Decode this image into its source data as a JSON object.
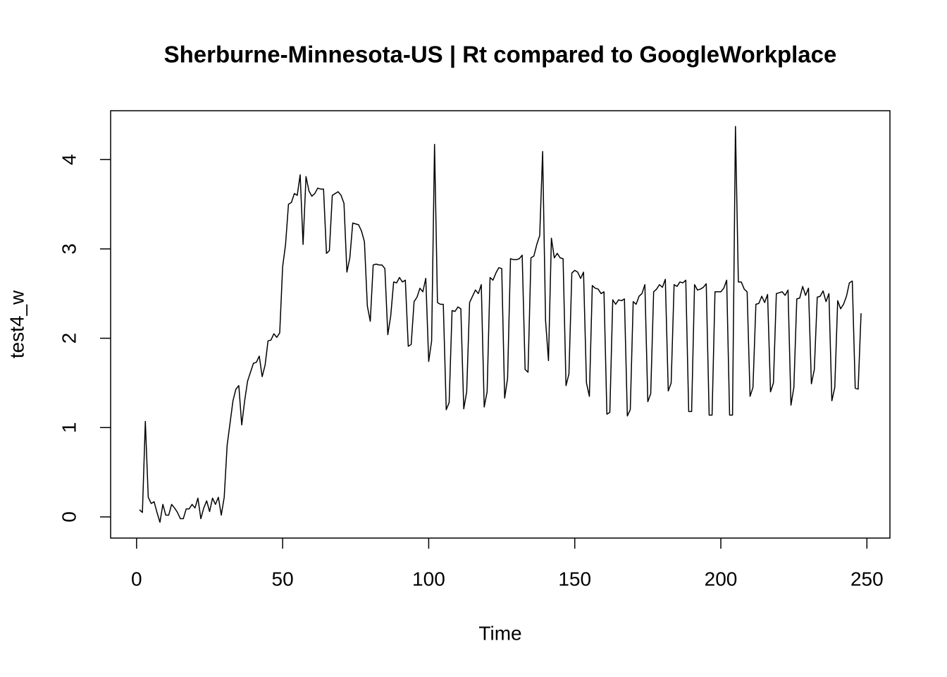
{
  "chart_data": {
    "type": "line",
    "title": "Sherburne-Minnesota-US | Rt compared to GoogleWorkplace",
    "x_label": "Time",
    "y_label": "test4_w",
    "color": "#000000",
    "x": [
      1,
      2,
      3,
      4,
      5,
      6,
      7,
      8,
      9,
      10,
      11,
      12,
      13,
      14,
      15,
      16,
      17,
      18,
      19,
      20,
      21,
      22,
      23,
      24,
      25,
      26,
      27,
      28,
      29,
      30,
      31,
      32,
      33,
      34,
      35,
      36,
      37,
      38,
      39,
      40,
      41,
      42,
      43,
      44,
      45,
      46,
      47,
      48,
      49,
      50,
      51,
      52,
      53,
      54,
      55,
      56,
      57,
      58,
      59,
      60,
      61,
      62,
      63,
      64,
      65,
      66,
      67,
      68,
      69,
      70,
      71,
      72,
      73,
      74,
      75,
      76,
      77,
      78,
      79,
      80,
      81,
      82,
      83,
      84,
      85,
      86,
      87,
      88,
      89,
      90,
      91,
      92,
      93,
      94,
      95,
      96,
      97,
      98,
      99,
      100,
      101,
      102,
      103,
      104,
      105,
      106,
      107,
      108,
      109,
      110,
      111,
      112,
      113,
      114,
      115,
      116,
      117,
      118,
      119,
      120,
      121,
      122,
      123,
      124,
      125,
      126,
      127,
      128,
      129,
      130,
      131,
      132,
      133,
      134,
      135,
      136,
      137,
      138,
      139,
      140,
      141,
      142,
      143,
      144,
      145,
      146,
      147,
      148,
      149,
      150,
      151,
      152,
      153,
      154,
      155,
      156,
      157,
      158,
      159,
      160,
      161,
      162,
      163,
      164,
      165,
      166,
      167,
      168,
      169,
      170,
      171,
      172,
      173,
      174,
      175,
      176,
      177,
      178,
      179,
      180,
      181,
      182,
      183,
      184,
      185,
      186,
      187,
      188,
      189,
      190,
      191,
      192,
      193,
      194,
      195,
      196,
      197,
      198,
      199,
      200,
      201,
      202,
      203,
      204,
      205,
      206,
      207,
      208,
      209,
      210,
      211,
      212,
      213,
      214,
      215,
      216,
      217,
      218,
      219,
      220,
      221,
      222,
      223,
      224,
      225,
      226,
      227,
      228,
      229,
      230,
      231,
      232,
      233,
      234,
      235,
      236,
      237,
      238,
      239,
      240,
      241,
      242,
      243,
      244,
      245,
      246,
      247,
      248
    ],
    "values": [
      0.08,
      0.05,
      1.07,
      0.22,
      0.15,
      0.17,
      0.05,
      -0.06,
      0.14,
      0.02,
      0.02,
      0.14,
      0.1,
      0.05,
      -0.02,
      -0.02,
      0.09,
      0.09,
      0.14,
      0.1,
      0.21,
      -0.02,
      0.1,
      0.18,
      0.06,
      0.21,
      0.14,
      0.22,
      0.02,
      0.22,
      0.8,
      1.05,
      1.3,
      1.43,
      1.47,
      1.03,
      1.3,
      1.52,
      1.62,
      1.72,
      1.73,
      1.8,
      1.57,
      1.7,
      1.97,
      1.98,
      2.05,
      2.01,
      2.06,
      2.8,
      3.05,
      3.5,
      3.52,
      3.62,
      3.6,
      3.83,
      3.05,
      3.81,
      3.65,
      3.59,
      3.62,
      3.68,
      3.67,
      3.67,
      2.95,
      2.98,
      3.6,
      3.62,
      3.64,
      3.6,
      3.51,
      2.74,
      2.9,
      3.29,
      3.28,
      3.27,
      3.2,
      3.08,
      2.36,
      2.19,
      2.82,
      2.83,
      2.82,
      2.82,
      2.78,
      2.04,
      2.25,
      2.63,
      2.62,
      2.68,
      2.63,
      2.65,
      1.91,
      1.93,
      2.41,
      2.46,
      2.56,
      2.52,
      2.67,
      1.74,
      1.97,
      4.17,
      2.4,
      2.38,
      2.38,
      1.2,
      1.28,
      2.31,
      2.3,
      2.35,
      2.33,
      1.21,
      1.4,
      2.4,
      2.47,
      2.54,
      2.5,
      2.6,
      1.23,
      1.4,
      2.68,
      2.65,
      2.73,
      2.79,
      2.78,
      1.33,
      1.55,
      2.89,
      2.88,
      2.88,
      2.89,
      2.93,
      1.65,
      1.62,
      2.9,
      2.92,
      3.05,
      3.15,
      4.09,
      2.2,
      1.75,
      3.12,
      2.9,
      2.95,
      2.9,
      2.89,
      1.47,
      1.6,
      2.73,
      2.76,
      2.74,
      2.67,
      2.74,
      1.5,
      1.35,
      2.59,
      2.56,
      2.55,
      2.5,
      2.52,
      1.15,
      1.17,
      2.43,
      2.38,
      2.43,
      2.42,
      2.44,
      1.13,
      1.2,
      2.41,
      2.38,
      2.47,
      2.5,
      2.6,
      1.29,
      1.38,
      2.52,
      2.55,
      2.6,
      2.57,
      2.66,
      1.41,
      1.5,
      2.6,
      2.58,
      2.63,
      2.62,
      2.65,
      1.18,
      1.18,
      2.6,
      2.54,
      2.55,
      2.57,
      2.61,
      1.14,
      1.14,
      2.52,
      2.52,
      2.52,
      2.56,
      2.65,
      1.14,
      1.14,
      4.37,
      2.63,
      2.63,
      2.55,
      2.52,
      1.35,
      1.45,
      2.38,
      2.39,
      2.47,
      2.4,
      2.49,
      1.4,
      1.5,
      2.5,
      2.51,
      2.52,
      2.48,
      2.54,
      1.25,
      1.45,
      2.44,
      2.45,
      2.58,
      2.48,
      2.56,
      1.49,
      1.65,
      2.46,
      2.47,
      2.53,
      2.41,
      2.5,
      1.3,
      1.45,
      2.42,
      2.33,
      2.38,
      2.47,
      2.62,
      2.64,
      1.44,
      1.43,
      2.28
    ],
    "xlim": [
      -8.88,
      257.88
    ],
    "ylim": [
      -0.237,
      4.547
    ],
    "xticks": [
      0,
      50,
      100,
      150,
      200,
      250
    ],
    "yticks": [
      0,
      1,
      2,
      3,
      4
    ]
  }
}
